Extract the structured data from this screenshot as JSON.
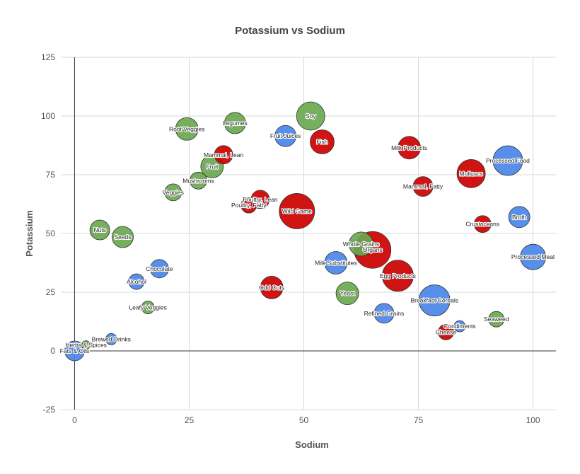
{
  "chart_data": {
    "type": "scatter",
    "title": "Potassium vs Sodium",
    "xlabel": "Sodium",
    "ylabel": "Potassium",
    "xlim": [
      -3,
      105
    ],
    "ylim": [
      -25,
      125
    ],
    "xticks": [
      0,
      25,
      50,
      75,
      100
    ],
    "yticks": [
      -25,
      0,
      25,
      50,
      75,
      100,
      125
    ],
    "grid": true,
    "colors": {
      "green": "#6aa84f",
      "blue": "#4a86e8",
      "red": "#cc0000"
    },
    "points": [
      {
        "label": "Root Veggies",
        "x": 24.5,
        "y": 94.5,
        "size": 16,
        "color": "green"
      },
      {
        "label": "Legumes",
        "x": 35,
        "y": 97,
        "size": 15,
        "color": "green"
      },
      {
        "label": "Soy",
        "x": 51.5,
        "y": 100,
        "size": 20,
        "color": "green"
      },
      {
        "label": "Fruit Juices",
        "x": 46,
        "y": 91.5,
        "size": 15,
        "color": "blue"
      },
      {
        "label": "Fish",
        "x": 54,
        "y": 89,
        "size": 17,
        "color": "red"
      },
      {
        "label": "Milk Products",
        "x": 73,
        "y": 86.5,
        "size": 16,
        "color": "red"
      },
      {
        "label": "Processed Food",
        "x": 94.5,
        "y": 81,
        "size": 21,
        "color": "blue"
      },
      {
        "label": "Mammal, Lean",
        "x": 32.5,
        "y": 83.5,
        "size": 13,
        "color": "red"
      },
      {
        "label": "Fruit",
        "x": 30,
        "y": 78.5,
        "size": 16,
        "color": "green"
      },
      {
        "label": "Molluscs",
        "x": 86.5,
        "y": 75.5,
        "size": 20,
        "color": "red"
      },
      {
        "label": "Mushrooms",
        "x": 27,
        "y": 72.5,
        "size": 12,
        "color": "green"
      },
      {
        "label": "Mammal, Fatty",
        "x": 76,
        "y": 70,
        "size": 14,
        "color": "red"
      },
      {
        "label": "Veggies",
        "x": 21.5,
        "y": 67.5,
        "size": 12,
        "color": "green"
      },
      {
        "label": "Poultry, Lean",
        "x": 40.5,
        "y": 64.5,
        "size": 13,
        "color": "red"
      },
      {
        "label": "Poultry, Fatty",
        "x": 38,
        "y": 62,
        "size": 11,
        "color": "red"
      },
      {
        "label": "Wild Game",
        "x": 48.5,
        "y": 59.5,
        "size": 25,
        "color": "red"
      },
      {
        "label": "Broth",
        "x": 97,
        "y": 57,
        "size": 15,
        "color": "blue"
      },
      {
        "label": "Crustaceans",
        "x": 89,
        "y": 54,
        "size": 12,
        "color": "red"
      },
      {
        "label": "Nuts",
        "x": 5.5,
        "y": 51.5,
        "size": 14,
        "color": "green"
      },
      {
        "label": "Seeds",
        "x": 10.5,
        "y": 48.5,
        "size": 15,
        "color": "green"
      },
      {
        "label": "Whole Grains",
        "x": 62.5,
        "y": 45.5,
        "size": 17,
        "color": "green"
      },
      {
        "label": "Organs",
        "x": 65,
        "y": 43,
        "size": 26,
        "color": "red"
      },
      {
        "label": "Milk Substitutes",
        "x": 57,
        "y": 37.5,
        "size": 16,
        "color": "blue"
      },
      {
        "label": "Processed Meat",
        "x": 100,
        "y": 40,
        "size": 18,
        "color": "blue"
      },
      {
        "label": "Chocolate",
        "x": 18.5,
        "y": 35,
        "size": 13,
        "color": "blue"
      },
      {
        "label": "Egg Products",
        "x": 70.5,
        "y": 32,
        "size": 22,
        "color": "red"
      },
      {
        "label": "Alcohol",
        "x": 13.5,
        "y": 29.5,
        "size": 11,
        "color": "blue"
      },
      {
        "label": "Odd Cuts",
        "x": 43,
        "y": 27,
        "size": 16,
        "color": "red"
      },
      {
        "label": "Yeast",
        "x": 59.5,
        "y": 24.5,
        "size": 16,
        "color": "green"
      },
      {
        "label": "Breakfast Cereals",
        "x": 78.5,
        "y": 21.5,
        "size": 22,
        "color": "blue"
      },
      {
        "label": "Leafy Veggies",
        "x": 16,
        "y": 18.5,
        "size": 9,
        "color": "green"
      },
      {
        "label": "Refined Grains",
        "x": 67.5,
        "y": 16,
        "size": 14,
        "color": "blue"
      },
      {
        "label": "Seaweed",
        "x": 92,
        "y": 13.5,
        "size": 11,
        "color": "green"
      },
      {
        "label": "Condiments",
        "x": 84,
        "y": 10.5,
        "size": 8,
        "color": "blue"
      },
      {
        "label": "Cheese",
        "x": 81,
        "y": 8,
        "size": 11,
        "color": "red"
      },
      {
        "label": "Brewed Drinks",
        "x": 8,
        "y": 5,
        "size": 8,
        "color": "blue"
      },
      {
        "label": "Herbs & Spices",
        "x": 2.5,
        "y": 2.5,
        "size": 6,
        "color": "green"
      },
      {
        "label": "Fats & Oils",
        "x": 0,
        "y": 0,
        "size": 14,
        "color": "blue"
      }
    ]
  }
}
